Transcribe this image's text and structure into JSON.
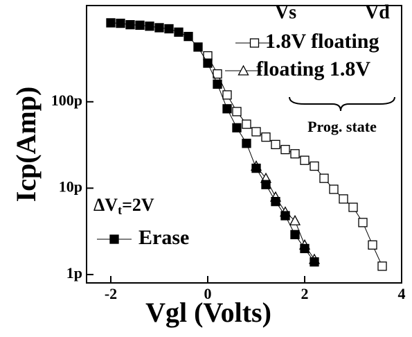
{
  "chart_data": {
    "type": "line",
    "x_label": "Vgl (Volts)",
    "y_label": "Icp(Amp)",
    "log_y": true,
    "xlim": [
      -2.5,
      4
    ],
    "ylim": [
      8e-13,
      1.3e-09
    ],
    "xticks": [
      -2,
      0,
      2,
      4
    ],
    "yticks": [
      {
        "value": 1e-12,
        "label": "1p"
      },
      {
        "value": 1e-11,
        "label": "10p"
      },
      {
        "value": 1e-10,
        "label": "100p"
      }
    ],
    "legend_headers": [
      "Vs",
      "Vd"
    ],
    "brace_label": "Prog. state",
    "delta_label": {
      "main": "ΔV",
      "sub": "t",
      "rest": "=2V"
    },
    "series": [
      {
        "name": "1.8V floating",
        "marker": "open-square",
        "color": "#000000",
        "x": [
          0,
          0.2,
          0.4,
          0.6,
          0.8,
          1.0,
          1.2,
          1.4,
          1.6,
          1.8,
          2.0,
          2.2,
          2.4,
          2.6,
          2.8,
          3.0,
          3.2,
          3.4,
          3.6
        ],
        "values": [
          3.4e-10,
          2.1e-10,
          1.2e-10,
          7.7e-11,
          5.5e-11,
          4.5e-11,
          3.9e-11,
          3.2e-11,
          2.8e-11,
          2.5e-11,
          2.1e-11,
          1.8e-11,
          1.3e-11,
          9.7e-12,
          7.5e-12,
          6e-12,
          4e-12,
          2.2e-12,
          1.25e-12
        ]
      },
      {
        "name": "floating 1.8V",
        "marker": "open-triangle",
        "color": "#000000",
        "x": [
          1.0,
          1.2,
          1.4,
          1.6,
          1.8,
          2.0,
          2.2
        ],
        "values": [
          1.8e-11,
          1.3e-11,
          7.9e-12,
          5.3e-12,
          4.2e-12,
          2.2e-12,
          1.5e-12
        ]
      },
      {
        "name": "Erase",
        "marker": "filled-square",
        "color": "#000000",
        "x": [
          -2.0,
          -1.8,
          -1.6,
          -1.4,
          -1.2,
          -1.0,
          -0.8,
          -0.6,
          -0.4,
          -0.2,
          0.0,
          0.2,
          0.4,
          0.6,
          0.8,
          1.0,
          1.2,
          1.4,
          1.6,
          1.8,
          2.0,
          2.2
        ],
        "values": [
          8.2e-10,
          8.1e-10,
          7.8e-10,
          7.7e-10,
          7.5e-10,
          7.2e-10,
          7e-10,
          6.4e-10,
          5.7e-10,
          4.3e-10,
          2.8e-10,
          1.6e-10,
          8.3e-11,
          5e-11,
          3.3e-11,
          1.7e-11,
          1.1e-11,
          7e-12,
          4.8e-12,
          2.9e-12,
          2e-12,
          1.4e-12
        ]
      }
    ]
  }
}
